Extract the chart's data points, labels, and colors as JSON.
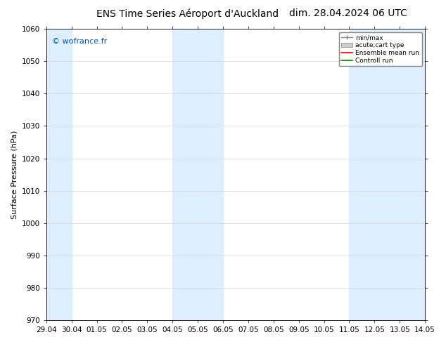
{
  "title_left": "ENS Time Series Aéroport d'Auckland",
  "title_right": "dim. 28.04.2024 06 UTC",
  "ylabel": "Surface Pressure (hPa)",
  "ylim": [
    970,
    1060
  ],
  "yticks": [
    970,
    980,
    990,
    1000,
    1010,
    1020,
    1030,
    1040,
    1050,
    1060
  ],
  "xtick_labels": [
    "29.04",
    "30.04",
    "01.05",
    "02.05",
    "03.05",
    "04.05",
    "05.05",
    "06.05",
    "07.05",
    "08.05",
    "09.05",
    "10.05",
    "11.05",
    "12.05",
    "13.05",
    "14.05"
  ],
  "xtick_positions": [
    0,
    1,
    2,
    3,
    4,
    5,
    6,
    7,
    8,
    9,
    10,
    11,
    12,
    13,
    14,
    15
  ],
  "watermark": "© wofrance.fr",
  "watermark_color": "#0055cc",
  "shaded_bands": [
    {
      "x_start": 0,
      "x_end": 1,
      "color": "#ddeeff"
    },
    {
      "x_start": 5,
      "x_end": 7,
      "color": "#ddeeff"
    },
    {
      "x_start": 12,
      "x_end": 15,
      "color": "#ddeeff"
    }
  ],
  "legend_entries": [
    {
      "label": "min/max",
      "color": "#aaaaaa",
      "type": "errorbar"
    },
    {
      "label": "acute;cart type",
      "color": "#cccccc",
      "type": "box"
    },
    {
      "label": "Ensemble mean run",
      "color": "red",
      "type": "line"
    },
    {
      "label": "Controll run",
      "color": "green",
      "type": "line"
    }
  ],
  "background_color": "#ffffff",
  "grid_color": "#cccccc",
  "title_fontsize": 10,
  "axis_label_fontsize": 8,
  "tick_fontsize": 7.5,
  "watermark_fontsize": 8
}
